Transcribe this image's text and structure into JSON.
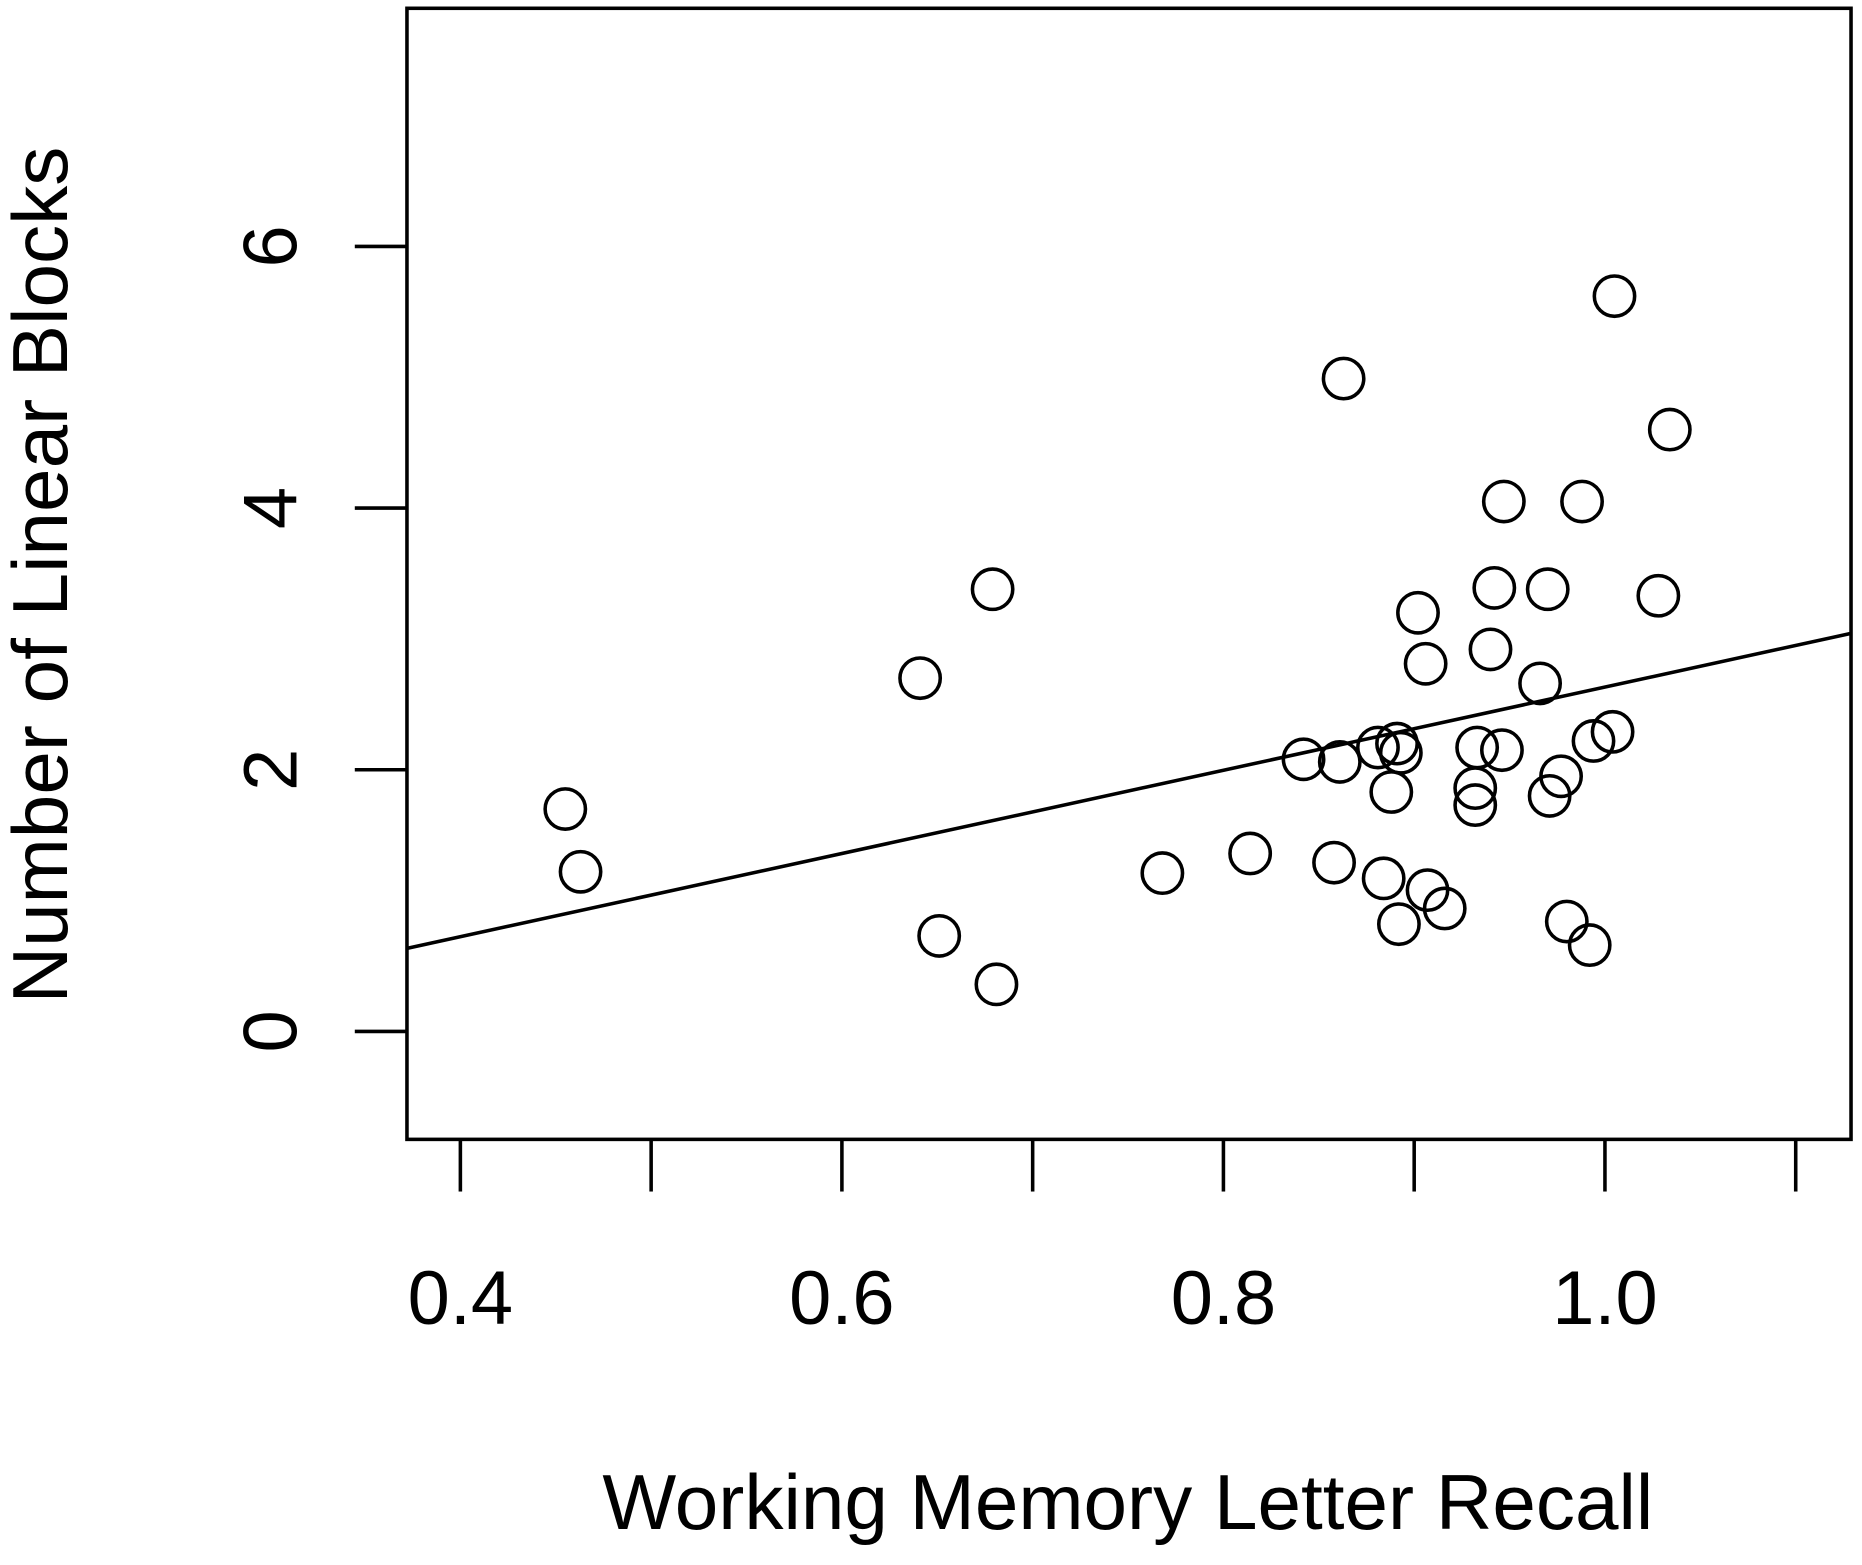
{
  "chart_data": {
    "type": "scatter",
    "x_label": "Working Memory Letter Recall",
    "y_label": "Number of Linear Blocks",
    "xlim": [
      0.372,
      1.129
    ],
    "ylim": [
      -0.825,
      7.82
    ],
    "xticks": [
      0.4,
      0.6,
      0.8,
      {
        "value": 1,
        "label": "1.0"
      }
    ],
    "xminor_ticks": [
      0.5,
      0.7,
      0.9,
      1.1
    ],
    "yticks": [
      0,
      2,
      4,
      6
    ],
    "trend_line": {
      "intercept": -0.548,
      "slope": 3.18
    },
    "series": [
      {
        "color": "#000000",
        "x": [
          0.455,
          0.463,
          0.641,
          0.651,
          0.679,
          0.681,
          0.768,
          0.814,
          0.842,
          0.858,
          0.861,
          0.863,
          0.881,
          0.884,
          0.888,
          0.891,
          0.893,
          0.892,
          0.902,
          0.906,
          0.907,
          0.916,
          0.932,
          0.932,
          0.933,
          0.94,
          0.942,
          0.946,
          0.947,
          0.966,
          0.97,
          0.971,
          0.977,
          0.98,
          0.988,
          0.992,
          0.994,
          1.004,
          1.005,
          1.028,
          1.034
        ],
        "values": [
          1.7,
          1.22,
          2.7,
          0.73,
          3.38,
          0.36,
          1.21,
          1.36,
          2.08,
          1.29,
          2.06,
          4.99,
          2.17,
          1.17,
          1.83,
          2.2,
          2.13,
          0.82,
          3.2,
          2.81,
          1.08,
          0.94,
          1.86,
          1.73,
          2.17,
          2.92,
          3.39,
          2.15,
          4.05,
          2.66,
          3.38,
          1.8,
          1.95,
          0.84,
          4.05,
          0.66,
          2.22,
          2.29,
          5.62,
          3.33,
          4.6
        ]
      }
    ]
  }
}
